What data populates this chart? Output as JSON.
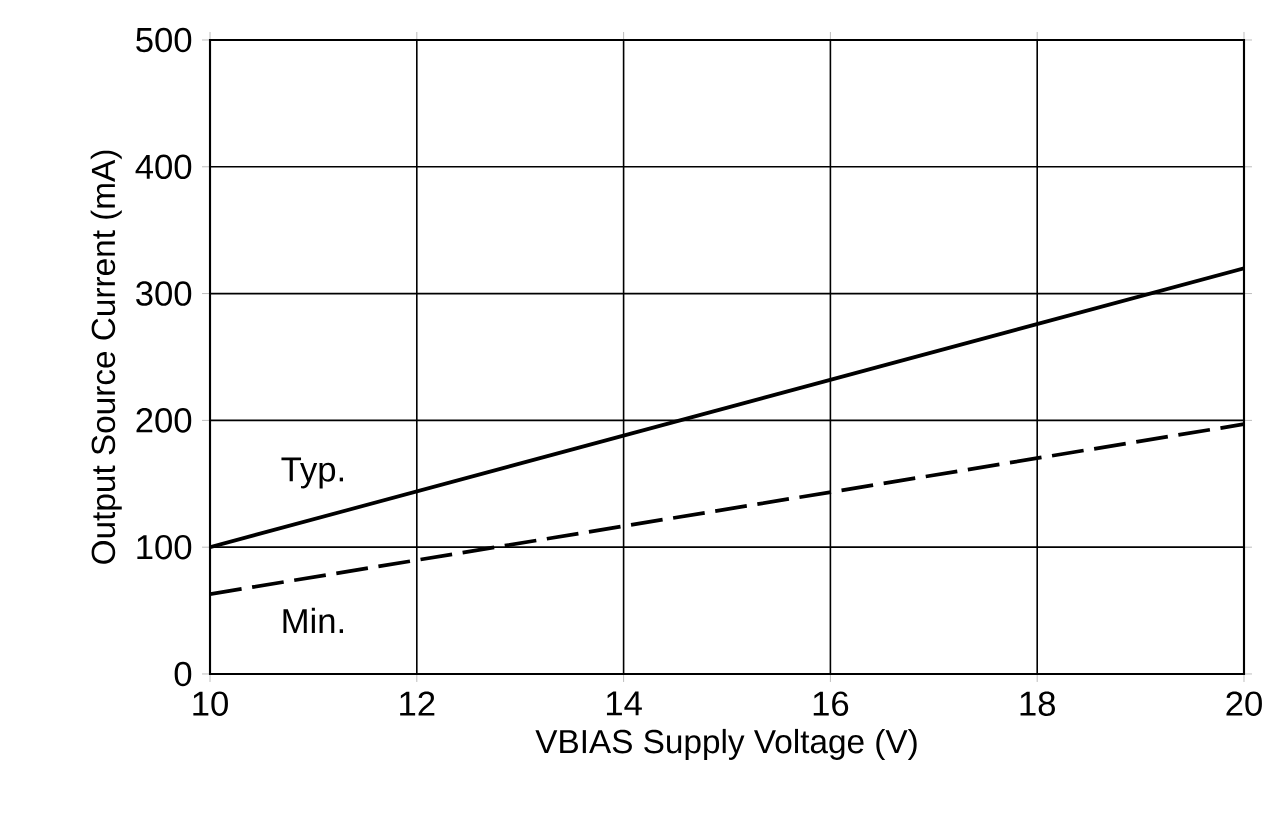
{
  "chart_data": {
    "type": "line",
    "xlabel": "VBIAS Supply Voltage (V)",
    "ylabel": "Output Source Current  (mA)",
    "x": [
      10,
      20
    ],
    "series": [
      {
        "name": "Typ.",
        "color": "#000000",
        "values": [
          100,
          320
        ],
        "line_style": "solid"
      },
      {
        "name": "Min.",
        "color": "#000000",
        "values": [
          63,
          197
        ],
        "line_style": "dashed"
      }
    ],
    "xlim": [
      10,
      20
    ],
    "ylim": [
      0,
      500
    ],
    "xticks": [
      10,
      12,
      14,
      16,
      18,
      20
    ],
    "yticks": [
      0,
      100,
      200,
      300,
      400,
      500
    ],
    "grid": true,
    "legend": false
  }
}
